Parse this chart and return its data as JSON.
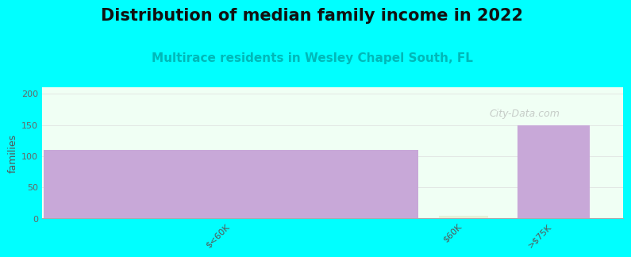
{
  "title": "Distribution of median family income in 2022",
  "subtitle": "Multirace residents in Wesley Chapel South, FL",
  "subtitle_color": "#00b8b8",
  "background_color": "#00ffff",
  "plot_bg_color": "#f0fff4",
  "bar_labels": [
    "$<60K",
    "$60K",
    ">$75K"
  ],
  "bar_values": [
    110,
    5,
    150
  ],
  "bar_colors": [
    "#c8a8d8",
    "#e8f0d8",
    "#c8a8d8"
  ],
  "ylabel": "families",
  "ylim": [
    0,
    210
  ],
  "yticks": [
    0,
    50,
    100,
    150,
    200
  ],
  "watermark": "City-Data.com",
  "title_fontsize": 15,
  "subtitle_fontsize": 11,
  "title_color": "#111111"
}
